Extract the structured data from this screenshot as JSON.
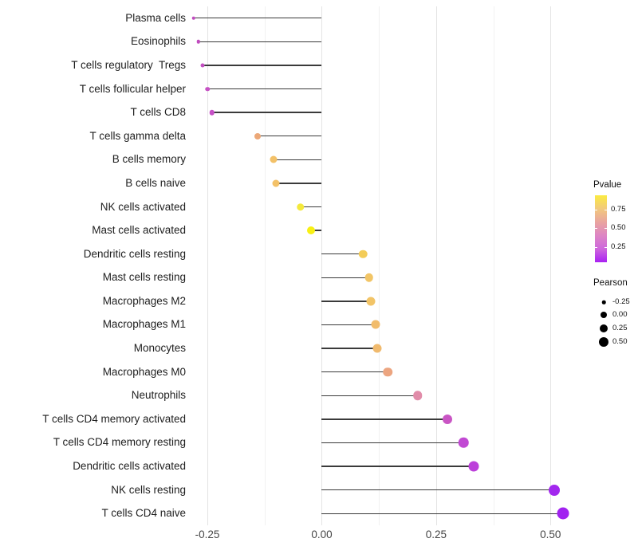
{
  "chart_data": {
    "type": "lollipop",
    "orientation": "horizontal",
    "title": "",
    "xlabel": "",
    "ylabel": "",
    "baseline": 0,
    "x_axis": {
      "tick_labels": [
        "-0.25",
        "0.00",
        "0.25",
        "0.50"
      ],
      "tick_values": [
        -0.25,
        0.0,
        0.25,
        0.5
      ],
      "minor_tick_values": [
        -0.125,
        0.125,
        0.375
      ],
      "range": [
        -0.285,
        0.585
      ],
      "grid": "vertical-only"
    },
    "rows": [
      {
        "label": "Plasma cells",
        "pearson": -0.28,
        "dot_color": "#c14cbf",
        "dot_size": 4.5
      },
      {
        "label": "Eosinophils",
        "pearson": -0.27,
        "dot_color": "#c14cbf",
        "dot_size": 4.5
      },
      {
        "label": "T cells regulatory  Tregs",
        "pearson": -0.26,
        "dot_color": "#c34ec1",
        "dot_size": 5
      },
      {
        "label": "T cells follicular helper",
        "pearson": -0.25,
        "dot_color": "#c651c4",
        "dot_size": 5.5
      },
      {
        "label": "T cells CD8",
        "pearson": -0.24,
        "dot_color": "#c650c6",
        "dot_size": 6.5
      },
      {
        "label": "T cells gamma delta",
        "pearson": -0.14,
        "dot_color": "#eca878",
        "dot_size": 8
      },
      {
        "label": "B cells memory",
        "pearson": -0.105,
        "dot_color": "#f3c168",
        "dot_size": 9
      },
      {
        "label": "B cells naive",
        "pearson": -0.1,
        "dot_color": "#f3c168",
        "dot_size": 9
      },
      {
        "label": "NK cells activated",
        "pearson": -0.047,
        "dot_color": "#f4e93c",
        "dot_size": 9.5
      },
      {
        "label": "Mast cells activated",
        "pearson": -0.023,
        "dot_color": "#f8f014",
        "dot_size": 10
      },
      {
        "label": "Dendritic cells resting",
        "pearson": 0.09,
        "dot_color": "#f3cc58",
        "dot_size": 10.5
      },
      {
        "label": "Mast cells resting",
        "pearson": 0.103,
        "dot_color": "#f2c566",
        "dot_size": 10.5
      },
      {
        "label": "Macrophages M2",
        "pearson": 0.108,
        "dot_color": "#f2c467",
        "dot_size": 11
      },
      {
        "label": "Macrophages M1",
        "pearson": 0.118,
        "dot_color": "#f1bc6c",
        "dot_size": 11
      },
      {
        "label": "Monocytes",
        "pearson": 0.122,
        "dot_color": "#f0ba6e",
        "dot_size": 11
      },
      {
        "label": "Macrophages M0",
        "pearson": 0.144,
        "dot_color": "#eca580",
        "dot_size": 11.5
      },
      {
        "label": "Neutrophils",
        "pearson": 0.21,
        "dot_color": "#e18ca9",
        "dot_size": 11.5
      },
      {
        "label": "T cells CD4 memory activated",
        "pearson": 0.275,
        "dot_color": "#c955c4",
        "dot_size": 12
      },
      {
        "label": "T cells CD4 memory resting",
        "pearson": 0.31,
        "dot_color": "#c149d3",
        "dot_size": 12.5
      },
      {
        "label": "Dendritic cells activated",
        "pearson": 0.333,
        "dot_color": "#bc40da",
        "dot_size": 13
      },
      {
        "label": "NK cells resting",
        "pearson": 0.509,
        "dot_color": "#a227ee",
        "dot_size": 14
      },
      {
        "label": "T cells CD4 naive",
        "pearson": 0.528,
        "dot_color": "#a122f0",
        "dot_size": 15
      }
    ],
    "legend": {
      "pvalue": {
        "title": "Pvalue",
        "tick_labels": [
          "0.75",
          "0.50",
          "0.25"
        ],
        "tick_fractions_from_top": [
          0.21,
          0.49,
          0.77
        ],
        "gradient_top_to_bottom": [
          "#fbeb41",
          "#f2c97d",
          "#e9a49f",
          "#dd85c4",
          "#ce68dc",
          "#a921f2"
        ]
      },
      "pearson": {
        "title": "Pearson",
        "items": [
          {
            "label": "-0.25",
            "size": 4.5
          },
          {
            "label": "0.00",
            "size": 8
          },
          {
            "label": "0.25",
            "size": 10
          },
          {
            "label": "0.50",
            "size": 12
          }
        ]
      }
    },
    "style": {
      "stem_color": "#3a3a3a",
      "grid_major_color": "#e4e4e4",
      "grid_minor_color": "#f1f1f1",
      "background": "#ffffff"
    }
  }
}
